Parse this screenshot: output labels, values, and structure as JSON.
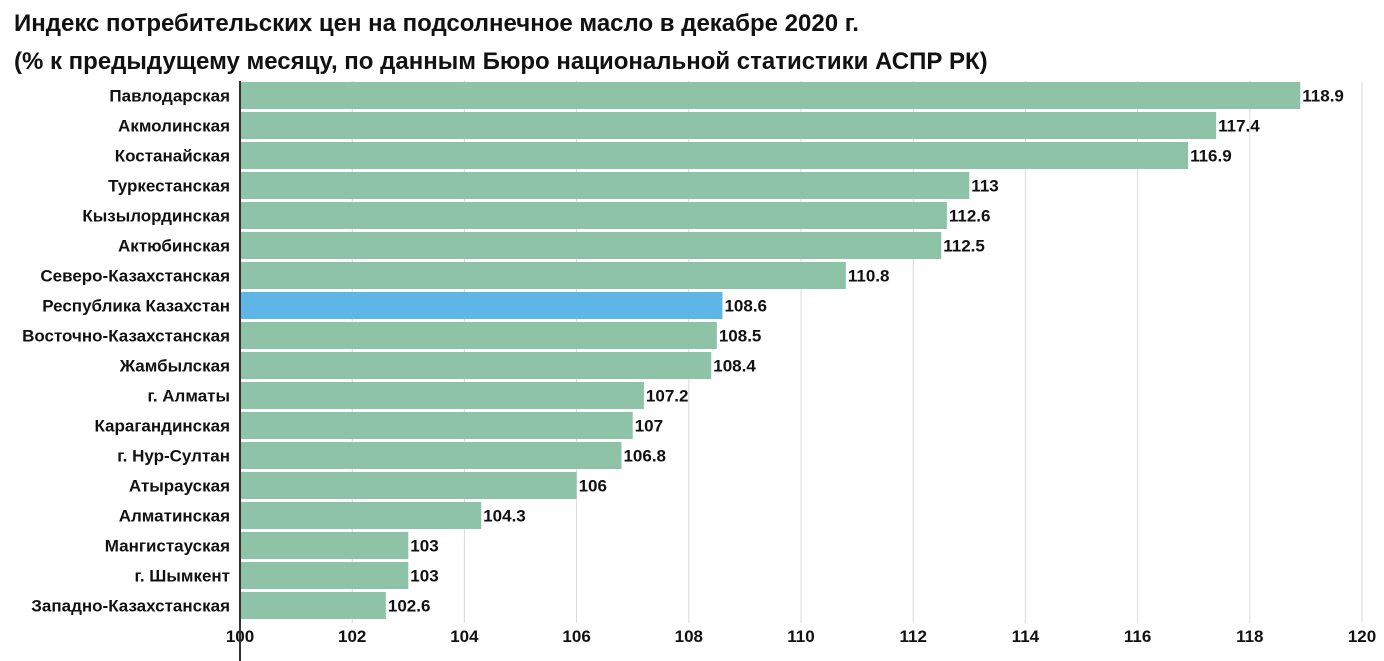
{
  "chart_data": {
    "type": "bar",
    "orientation": "horizontal",
    "title": "Индекс потребительских цен на подсолнечное масло в декабре 2020 г.",
    "subtitle": "(% к предыдущему месяцу, по данным Бюро национальной статистики АСПР РК)",
    "categories": [
      "Павлодарская",
      "Акмолинская",
      "Костанайская",
      "Туркестанская",
      "Кызылординская",
      "Актюбинская",
      "Северо-Казахстанская",
      "Республика Казахстан",
      "Восточно-Казахстанская",
      "Жамбылская",
      "г. Алматы",
      "Карагандинская",
      "г. Нур-Султан",
      "Атырауская",
      "Алматинская",
      "Мангистауская",
      "г. Шымкент",
      "Западно-Казахстанская"
    ],
    "values": [
      118.9,
      117.4,
      116.9,
      113,
      112.6,
      112.5,
      110.8,
      108.6,
      108.5,
      108.4,
      107.2,
      107,
      106.8,
      106,
      104.3,
      103,
      103,
      102.6
    ],
    "value_labels": [
      "118.9",
      "117.4",
      "116.9",
      "113",
      "112.6",
      "112.5",
      "110.8",
      "108.6",
      "108.5",
      "108.4",
      "107.2",
      "107",
      "106.8",
      "106",
      "104.3",
      "103",
      "103",
      "102.6"
    ],
    "highlight": "Республика Казахстан",
    "xlim": [
      100,
      120
    ],
    "x_ticks": [
      100,
      102,
      104,
      106,
      108,
      110,
      112,
      114,
      116,
      118,
      120
    ],
    "x_tick_labels": [
      "100",
      "102",
      "104",
      "106",
      "108",
      "110",
      "112",
      "114",
      "116",
      "118",
      "120"
    ],
    "grid": true,
    "xlabel": "",
    "ylabel": "",
    "colors": {
      "bar": "#8fc3a8",
      "highlight": "#5db6e5",
      "grid": "#d9d9d9",
      "axis": "#333333"
    }
  }
}
